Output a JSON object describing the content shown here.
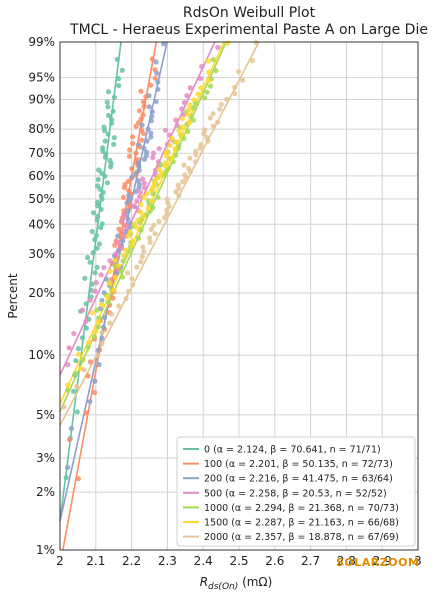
{
  "chart_data": {
    "type": "scatter",
    "title": "RdsOn Weibull Plot",
    "subtitle": "TMCL - Heraeus Experimental Paste A on Large Die",
    "xlabel_main": "R",
    "xlabel_sub": "ds(On)",
    "xlabel_unit": " (mΩ)",
    "ylabel": "Percent",
    "xlim": [
      2.0,
      3.0
    ],
    "yscale": "weibull",
    "ylim_percent": [
      1,
      99
    ],
    "x_ticks": [
      {
        "v": 2.0,
        "label": "2"
      },
      {
        "v": 2.1,
        "label": "2.1"
      },
      {
        "v": 2.2,
        "label": "2.2"
      },
      {
        "v": 2.3,
        "label": "2.3"
      },
      {
        "v": 2.4,
        "label": "2.4"
      },
      {
        "v": 2.5,
        "label": "2.5"
      },
      {
        "v": 2.6,
        "label": "2.6"
      },
      {
        "v": 2.7,
        "label": "2.7"
      },
      {
        "v": 2.8,
        "label": "2.8"
      },
      {
        "v": 2.9,
        "label": "2.9"
      },
      {
        "v": 3.0,
        "label": "3"
      }
    ],
    "y_ticks": [
      {
        "p": 1,
        "label": "1%"
      },
      {
        "p": 2,
        "label": "2%"
      },
      {
        "p": 3,
        "label": "3%"
      },
      {
        "p": 5,
        "label": "5%"
      },
      {
        "p": 10,
        "label": "10%"
      },
      {
        "p": 20,
        "label": "20%"
      },
      {
        "p": 30,
        "label": "30%"
      },
      {
        "p": 40,
        "label": "40%"
      },
      {
        "p": 50,
        "label": "50%"
      },
      {
        "p": 60,
        "label": "60%"
      },
      {
        "p": 70,
        "label": "70%"
      },
      {
        "p": 80,
        "label": "80%"
      },
      {
        "p": 90,
        "label": "90%"
      },
      {
        "p": 95,
        "label": "95%"
      },
      {
        "p": 99,
        "label": "99%"
      }
    ],
    "grid": true,
    "legend_position": "bottom-right",
    "series": [
      {
        "name": "0 (α = 2.124, β = 70.641, n = 71/71)",
        "alpha": 2.124,
        "beta": 70.641,
        "n": 71,
        "color": "#66c2a5"
      },
      {
        "name": "100 (α = 2.201, β = 50.135, n = 72/73)",
        "alpha": 2.201,
        "beta": 50.135,
        "n": 72,
        "color": "#fc8d62"
      },
      {
        "name": "200 (α = 2.216, β = 41.475, n = 63/64)",
        "alpha": 2.216,
        "beta": 41.475,
        "n": 63,
        "color": "#8da0cb"
      },
      {
        "name": "500 (α = 2.258, β = 20.53, n = 52/52)",
        "alpha": 2.258,
        "beta": 20.53,
        "n": 52,
        "color": "#e78ac3"
      },
      {
        "name": "1000 (α = 2.294, β = 21.368, n = 70/73)",
        "alpha": 2.294,
        "beta": 21.368,
        "n": 70,
        "color": "#a6d854"
      },
      {
        "name": "1500 (α = 2.287, β = 21.163, n = 66/68)",
        "alpha": 2.287,
        "beta": 21.163,
        "n": 66,
        "color": "#ffd92f"
      },
      {
        "name": "2000 (α = 2.357, β = 18.878, n = 67/69)",
        "alpha": 2.357,
        "beta": 18.878,
        "n": 67,
        "color": "#e5c494"
      }
    ]
  },
  "watermark": "SOLARZOOM"
}
